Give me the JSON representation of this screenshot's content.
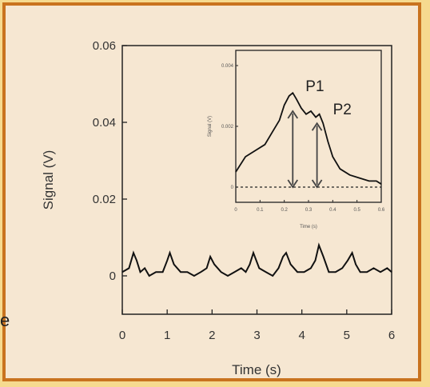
{
  "edge_text": "e",
  "chart_data": [
    {
      "type": "line",
      "title": "",
      "xlabel": "Time (s)",
      "ylabel": "Signal (V)",
      "xlim": [
        0,
        6
      ],
      "ylim": [
        -0.01,
        0.06
      ],
      "xticks": [
        0,
        1,
        2,
        3,
        4,
        5,
        6
      ],
      "yticks": [
        0,
        0.02,
        0.04,
        0.06
      ],
      "xtick_labels": [
        "0",
        "1",
        "2",
        "3",
        "4",
        "5",
        "6"
      ],
      "ytick_labels": [
        "0",
        "0.02",
        "0.04",
        "0.06"
      ],
      "grid": false,
      "series": [
        {
          "x": [
            0.0,
            0.15,
            0.25,
            0.32,
            0.4,
            0.5,
            0.6,
            0.75,
            0.9,
            1.0,
            1.06,
            1.15,
            1.3,
            1.45,
            1.6,
            1.75,
            1.88,
            1.96,
            2.05,
            2.2,
            2.35,
            2.5,
            2.65,
            2.75,
            2.84,
            2.92,
            3.05,
            3.2,
            3.35,
            3.48,
            3.58,
            3.65,
            3.75,
            3.9,
            4.05,
            4.2,
            4.3,
            4.38,
            4.48,
            4.6,
            4.75,
            4.9,
            5.02,
            5.12,
            5.2,
            5.3,
            5.45,
            5.6,
            5.75,
            5.9,
            6.0
          ],
          "y": [
            0.001,
            0.002,
            0.006,
            0.004,
            0.001,
            0.002,
            0.0,
            0.001,
            0.001,
            0.004,
            0.006,
            0.003,
            0.001,
            0.001,
            0.0,
            0.001,
            0.002,
            0.005,
            0.003,
            0.001,
            0.0,
            0.001,
            0.002,
            0.001,
            0.003,
            0.006,
            0.002,
            0.001,
            0.0,
            0.002,
            0.005,
            0.006,
            0.003,
            0.001,
            0.001,
            0.002,
            0.004,
            0.008,
            0.005,
            0.001,
            0.001,
            0.002,
            0.004,
            0.006,
            0.003,
            0.001,
            0.001,
            0.002,
            0.001,
            0.002,
            0.001
          ]
        }
      ]
    },
    {
      "type": "line",
      "title": "",
      "xlabel": "Time (s)",
      "ylabel": "Signal (V)",
      "xlim": [
        0,
        0.6
      ],
      "ylim": [
        -0.0005,
        0.0045
      ],
      "xticks": [
        0,
        0.1,
        0.2,
        0.3,
        0.4,
        0.5,
        0.6
      ],
      "yticks": [
        0,
        0.002,
        0.004
      ],
      "xtick_labels": [
        "0",
        "0.1",
        "0.2",
        "0.3",
        "0.4",
        "0.5",
        "0.6"
      ],
      "ytick_labels": [
        "0",
        "0.002",
        "0.004"
      ],
      "grid": false,
      "baseline": 0,
      "annotations": [
        {
          "text": "P1",
          "x": 0.235,
          "y": 0.00295
        },
        {
          "text": "P2",
          "x": 0.335,
          "y": 0.00245
        }
      ],
      "arrows": [
        {
          "x": 0.235,
          "from": 0,
          "to": 0.0025
        },
        {
          "x": 0.335,
          "from": 0,
          "to": 0.0021
        }
      ],
      "series": [
        {
          "x": [
            0.0,
            0.04,
            0.08,
            0.12,
            0.15,
            0.18,
            0.2,
            0.22,
            0.235,
            0.25,
            0.27,
            0.29,
            0.31,
            0.33,
            0.345,
            0.36,
            0.38,
            0.4,
            0.43,
            0.47,
            0.51,
            0.55,
            0.58,
            0.6
          ],
          "y": [
            0.0005,
            0.001,
            0.0012,
            0.0014,
            0.0018,
            0.0022,
            0.0027,
            0.003,
            0.0031,
            0.0029,
            0.0026,
            0.0024,
            0.0025,
            0.0023,
            0.0024,
            0.0021,
            0.0015,
            0.001,
            0.0006,
            0.0004,
            0.0003,
            0.0002,
            0.0002,
            0.0001
          ]
        }
      ]
    }
  ]
}
